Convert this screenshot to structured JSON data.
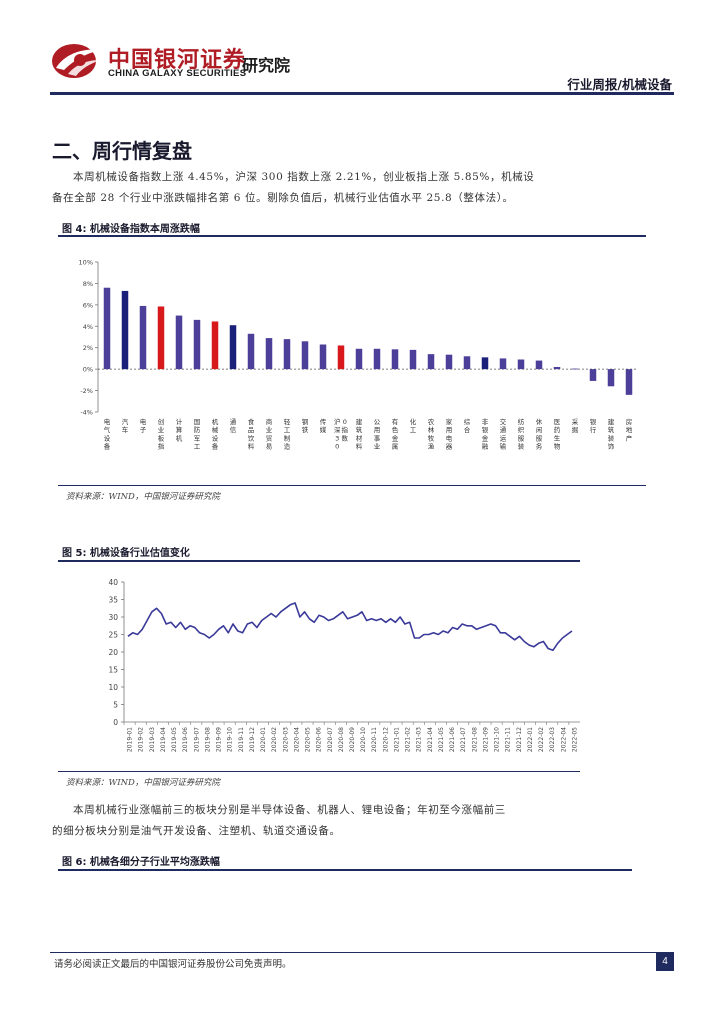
{
  "header": {
    "company_cn": "中国银河证券",
    "company_en": "CHINA GALAXY SECURITIES",
    "institute": "研究院",
    "report_tag": "行业周报/机械设备",
    "colors": {
      "brand_red": "#b01c24",
      "navy": "#1f2b5e"
    }
  },
  "section": {
    "title": "二、周行情复盘",
    "para1_line1": "本周机械设备指数上涨 4.45%，沪深 300 指数上涨 2.21%，创业板指上涨 5.85%，机械设",
    "para1_line2": "备在全部 28 个行业中涨跌幅排名第 6 位。剔除负值后，机械行业估值水平 25.8（整体法）。",
    "para2_line1": "本周机械行业涨幅前三的板块分别是半导体设备、机器人、锂电设备；年初至今涨幅前三",
    "para2_line2": "的细分板块分别是油气开发设备、注塑机、轨道交通设备。"
  },
  "figure4": {
    "caption": "图 4:  机械设备指数本周涨跌幅",
    "source": "资料来源：WIND，中国银河证券研究院"
  },
  "figure5": {
    "caption": "图 5:  机械设备行业估值变化",
    "source": "资料来源：WIND，中国银河证券研究院"
  },
  "figure6": {
    "caption": "图 6:  机械各细分子行业平均涨跌幅"
  },
  "footer": {
    "disclaimer": "请务必阅读正文最后的中国银河证券股份公司免责声明。",
    "page_number": "4"
  },
  "chart_data": [
    {
      "type": "bar",
      "ylim": [
        -4,
        10
      ],
      "yticks": [
        "10%",
        "8%",
        "6%",
        "4%",
        "2%",
        "0%",
        "-2%",
        "-4%"
      ],
      "categories": [
        "电气设备",
        "汽车",
        "电子",
        "创业板指",
        "计算机",
        "国防军工",
        "机械设备",
        "通信",
        "食品饮料",
        "商业贸易",
        "轻工制造",
        "钢铁",
        "传媒",
        "沪深300指数",
        "建筑材料",
        "公用事业",
        "有色金属",
        "化工",
        "农林牧渔",
        "家用电器",
        "综合",
        "非银金融",
        "交通运输",
        "纺织服装",
        "休闲服务",
        "医药生物",
        "采掘",
        "银行",
        "建筑装饰",
        "房地产"
      ],
      "values": [
        7.6,
        7.3,
        5.9,
        5.85,
        5.0,
        4.6,
        4.45,
        4.1,
        3.3,
        2.9,
        2.8,
        2.6,
        2.3,
        2.21,
        1.9,
        1.9,
        1.85,
        1.8,
        1.4,
        1.35,
        1.2,
        1.1,
        1.0,
        0.9,
        0.8,
        0.2,
        0.05,
        -1.1,
        -1.6,
        -2.4
      ],
      "highlight": [
        "创业板指",
        "机械设备",
        "沪深300指数"
      ],
      "dark_emphasis": [
        "汽车",
        "通信",
        "非银金融"
      ],
      "colors": {
        "default": "#4b3f9a",
        "dark": "#1a1f7a",
        "highlight": "#d7191c"
      }
    },
    {
      "type": "line",
      "ylim": [
        0,
        40
      ],
      "yticks": [
        0,
        5,
        10,
        15,
        20,
        25,
        30,
        35,
        40
      ],
      "x_labels": [
        "2019-01",
        "2019-02",
        "2019-03",
        "2019-04",
        "2019-05",
        "2019-06",
        "2019-07",
        "2019-08",
        "2019-09",
        "2019-10",
        "2019-11",
        "2019-12",
        "2020-01",
        "2020-02",
        "2020-03",
        "2020-04",
        "2020-05",
        "2020-06",
        "2020-07",
        "2020-08",
        "2020-09",
        "2020-10",
        "2020-11",
        "2020-12",
        "2021-01",
        "2021-02",
        "2021-03",
        "2021-04",
        "2021-05",
        "2021-06",
        "2021-07",
        "2021-08",
        "2021-09",
        "2021-10",
        "2021-11",
        "2021-12",
        "2022-01",
        "2022-02",
        "2022-03",
        "2022-04",
        "2022-05"
      ],
      "series": [
        {
          "color": "#3a3a9a",
          "values": [
            24.5,
            25.5,
            25,
            26.5,
            29,
            31.5,
            32.5,
            31,
            28,
            28.5,
            27,
            28.5,
            26.5,
            27.5,
            27,
            25.5,
            25,
            24,
            25,
            26.5,
            27.5,
            25.5,
            28,
            26,
            25.5,
            28,
            28.5,
            27,
            29,
            30,
            31,
            30,
            31.5,
            32.5,
            33.5,
            34,
            30,
            31.5,
            29.5,
            28.5,
            30.5,
            30,
            29,
            29.5,
            30.5,
            31.5,
            29.5,
            30,
            30.5,
            31.5,
            29,
            29.5,
            29,
            29.5,
            28.5,
            29.5,
            28.5,
            30,
            28,
            28.5,
            24,
            24,
            25,
            25,
            25.5,
            25,
            26,
            25.5,
            27,
            26.5,
            28,
            27.5,
            27.5,
            26.5,
            27,
            27.5,
            28,
            27.5,
            25.5,
            25.5,
            24.5,
            23.5,
            24.5,
            23,
            22,
            21.5,
            22.5,
            23,
            21,
            20.5,
            22.5,
            24,
            25,
            26
          ]
        }
      ]
    }
  ]
}
